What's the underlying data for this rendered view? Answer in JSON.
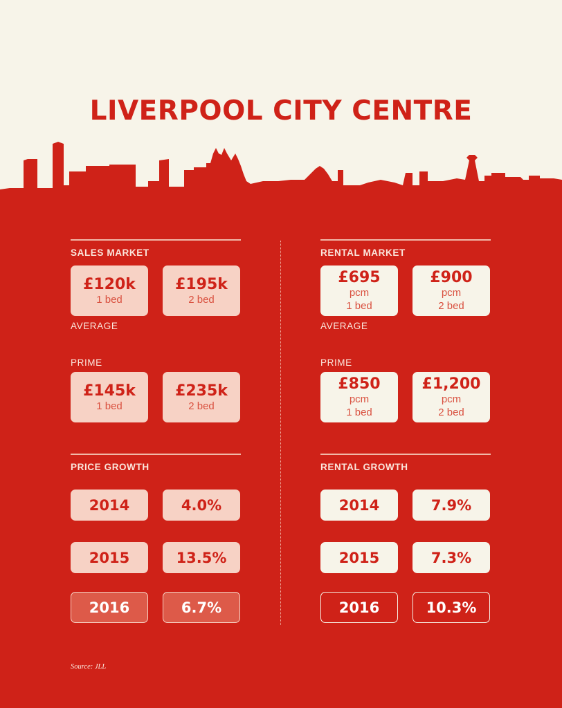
{
  "title": "LIVERPOOL CITY CENTRE",
  "colors": {
    "red": "#cf2218",
    "cream": "#f7f4e9",
    "pink": "#f7d2c5",
    "dark": "#dd5a49"
  },
  "sales": {
    "heading": "SALES MARKET",
    "average_label": "AVERAGE",
    "prime_label": "PRIME",
    "average": [
      {
        "price": "£120k",
        "beds": "1 bed"
      },
      {
        "price": "£195k",
        "beds": "2 bed"
      }
    ],
    "prime": [
      {
        "price": "£145k",
        "beds": "1 bed"
      },
      {
        "price": "£235k",
        "beds": "2 bed"
      }
    ]
  },
  "rental": {
    "heading": "RENTAL MARKET",
    "average_label": "AVERAGE",
    "prime_label": "PRIME",
    "average": [
      {
        "price": "£695",
        "unit": "pcm",
        "beds": "1 bed"
      },
      {
        "price": "£900",
        "unit": "pcm",
        "beds": "2 bed"
      }
    ],
    "prime": [
      {
        "price": "£850",
        "unit": "pcm",
        "beds": "1 bed"
      },
      {
        "price": "£1,200",
        "unit": "pcm",
        "beds": "2 bed"
      }
    ]
  },
  "price_growth": {
    "heading": "PRICE GROWTH",
    "rows": [
      {
        "year": "2014",
        "value": "4.0%"
      },
      {
        "year": "2015",
        "value": "13.5%"
      },
      {
        "year": "2016",
        "value": "6.7%"
      }
    ]
  },
  "rental_growth": {
    "heading": "RENTAL GROWTH",
    "rows": [
      {
        "year": "2014",
        "value": "7.9%"
      },
      {
        "year": "2015",
        "value": "7.3%"
      },
      {
        "year": "2016",
        "value": "10.3%"
      }
    ]
  },
  "source": "Source: JLL"
}
